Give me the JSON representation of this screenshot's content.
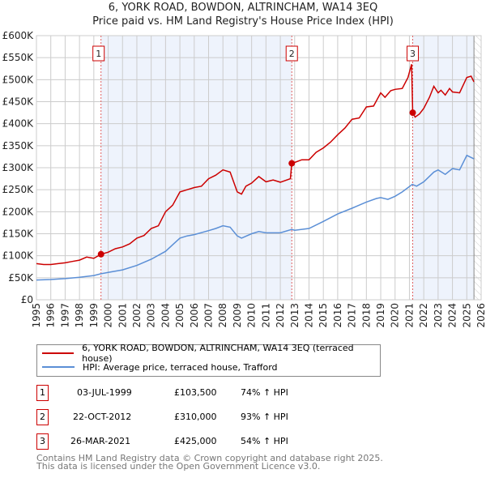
{
  "title": "6, YORK ROAD, BOWDON, ALTRINCHAM, WA14 3EQ",
  "subtitle": "Price paid vs. HM Land Registry's House Price Index (HPI)",
  "chart_data": {
    "type": "line",
    "xlim": [
      1995,
      2026
    ],
    "ylim": [
      0,
      600000
    ],
    "yticks": [
      {
        "v": 0,
        "l": "£0"
      },
      {
        "v": 50000,
        "l": "£50K"
      },
      {
        "v": 100000,
        "l": "£100K"
      },
      {
        "v": 150000,
        "l": "£150K"
      },
      {
        "v": 200000,
        "l": "£200K"
      },
      {
        "v": 250000,
        "l": "£250K"
      },
      {
        "v": 300000,
        "l": "£300K"
      },
      {
        "v": 350000,
        "l": "£350K"
      },
      {
        "v": 400000,
        "l": "£400K"
      },
      {
        "v": 450000,
        "l": "£450K"
      },
      {
        "v": 500000,
        "l": "£500K"
      },
      {
        "v": 550000,
        "l": "£550K"
      },
      {
        "v": 600000,
        "l": "£600K"
      }
    ],
    "xticks": [
      "1995",
      "1996",
      "1997",
      "1998",
      "1999",
      "2000",
      "2001",
      "2002",
      "2003",
      "2004",
      "2005",
      "2006",
      "2007",
      "2008",
      "2009",
      "2010",
      "2011",
      "2012",
      "2013",
      "2014",
      "2015",
      "2016",
      "2017",
      "2018",
      "2019",
      "2020",
      "2021",
      "2022",
      "2023",
      "2024",
      "2025",
      "2026"
    ],
    "grid": true,
    "shaded": [
      [
        1999.5,
        2012.8
      ],
      [
        2021.23,
        2025.5
      ]
    ],
    "hatched_from": 2025.5,
    "series": [
      {
        "name": "6, YORK ROAD, BOWDON, ALTRINCHAM, WA14 3EQ (terraced house)",
        "color": "#cc0000",
        "x": [
          1995,
          1995.5,
          1996,
          1996.5,
          1997,
          1997.5,
          1998,
          1998.5,
          1999,
          1999.5,
          2000,
          2000.5,
          2001,
          2001.5,
          2002,
          2002.5,
          2003,
          2003.5,
          2004,
          2004.5,
          2005,
          2005.3,
          2005.5,
          2006,
          2006.5,
          2007,
          2007.5,
          2008,
          2008.5,
          2009,
          2009.3,
          2009.6,
          2010,
          2010.5,
          2011,
          2011.5,
          2012,
          2012.7,
          2012.8,
          2013,
          2013.5,
          2014,
          2014.5,
          2015,
          2015.5,
          2016,
          2016.5,
          2017,
          2017.5,
          2018,
          2018.5,
          2019,
          2019.3,
          2019.7,
          2020,
          2020.5,
          2020.9,
          2021.15,
          2021.23,
          2021.4,
          2021.7,
          2022,
          2022.4,
          2022.7,
          2023,
          2023.2,
          2023.5,
          2023.8,
          2024,
          2024.5,
          2025,
          2025.3,
          2025.5
        ],
        "y": [
          82000,
          80000,
          80000,
          82000,
          84000,
          87000,
          90000,
          97000,
          94000,
          103500,
          108000,
          116000,
          120000,
          127000,
          140000,
          146000,
          162000,
          168000,
          200000,
          215000,
          245000,
          248000,
          250000,
          255000,
          258000,
          275000,
          283000,
          295000,
          290000,
          245000,
          240000,
          258000,
          265000,
          280000,
          268000,
          272000,
          267000,
          275000,
          310000,
          312000,
          318000,
          318000,
          335000,
          345000,
          358000,
          375000,
          390000,
          410000,
          413000,
          438000,
          440000,
          470000,
          460000,
          475000,
          478000,
          480000,
          505000,
          535000,
          425000,
          415000,
          422000,
          435000,
          460000,
          485000,
          470000,
          476000,
          465000,
          480000,
          472000,
          470000,
          505000,
          508000,
          495000
        ]
      },
      {
        "name": "HPI: Average price, terraced house, Trafford",
        "color": "#5b8fd6",
        "x": [
          1995,
          1996,
          1997,
          1998,
          1999,
          1999.5,
          2000,
          2001,
          2002,
          2003,
          2004,
          2004.5,
          2005,
          2005.5,
          2006,
          2007,
          2007.5,
          2008,
          2008.5,
          2009,
          2009.3,
          2010,
          2010.5,
          2011,
          2012,
          2012.8,
          2013,
          2014,
          2015,
          2016,
          2017,
          2018,
          2018.7,
          2019,
          2019.5,
          2020,
          2020.5,
          2021.2,
          2021.5,
          2022,
          2022.7,
          2023,
          2023.5,
          2024,
          2024.5,
          2025,
          2025.5
        ],
        "y": [
          45000,
          46000,
          48000,
          51000,
          55000,
          59000,
          62000,
          68000,
          78000,
          92000,
          110000,
          125000,
          140000,
          145000,
          148000,
          157000,
          162000,
          168000,
          165000,
          145000,
          140000,
          150000,
          155000,
          152000,
          152000,
          160000,
          158000,
          162000,
          178000,
          195000,
          208000,
          222000,
          230000,
          232000,
          228000,
          235000,
          245000,
          262000,
          258000,
          268000,
          290000,
          295000,
          285000,
          298000,
          295000,
          328000,
          320000
        ]
      }
    ],
    "sales": [
      {
        "n": "1",
        "x": 1999.5,
        "y": 103500
      },
      {
        "n": "2",
        "x": 2012.8,
        "y": 310000
      },
      {
        "n": "3",
        "x": 2021.23,
        "y": 425000
      }
    ]
  },
  "legend": {
    "property": "6, YORK ROAD, BOWDON, ALTRINCHAM, WA14 3EQ (terraced house)",
    "hpi": "HPI: Average price, terraced house, Trafford"
  },
  "transactions": [
    {
      "n": "1",
      "date": "03-JUL-1999",
      "price": "£103,500",
      "hpi": "74% ↑ HPI"
    },
    {
      "n": "2",
      "date": "22-OCT-2012",
      "price": "£310,000",
      "hpi": "93% ↑ HPI"
    },
    {
      "n": "3",
      "date": "26-MAR-2021",
      "price": "£425,000",
      "hpi": "54% ↑ HPI"
    }
  ],
  "footer": {
    "line1": "Contains HM Land Registry data © Crown copyright and database right 2025.",
    "line2": "This data is licensed under the Open Government Licence v3.0."
  }
}
